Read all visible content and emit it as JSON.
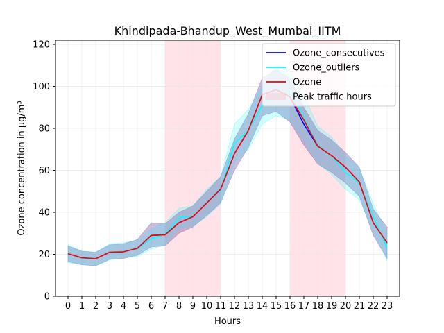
{
  "chart_data": {
    "type": "line",
    "title": "Khindipada-Bhandup_West_Mumbai_IITM",
    "xlabel": "Hours",
    "ylabel": "Ozone concentration in µg/m³",
    "x": [
      0,
      1,
      2,
      3,
      4,
      5,
      6,
      7,
      8,
      9,
      10,
      11,
      12,
      13,
      14,
      15,
      16,
      17,
      18,
      19,
      20,
      21,
      22,
      23
    ],
    "x_tick_labels": [
      "0",
      "1",
      "2",
      "3",
      "4",
      "5",
      "6",
      "7",
      "8",
      "9",
      "10",
      "11",
      "12",
      "13",
      "14",
      "15",
      "16",
      "17",
      "18",
      "19",
      "20",
      "21",
      "22",
      "23"
    ],
    "xlim": [
      -0.9,
      23.9
    ],
    "ylim": [
      0,
      122
    ],
    "y_ticks": [
      0,
      20,
      40,
      60,
      80,
      100,
      120
    ],
    "y_tick_labels": [
      "0",
      "20",
      "40",
      "60",
      "80",
      "100",
      "120"
    ],
    "grid": true,
    "legend_position": "top-right",
    "shaded_regions": [
      {
        "name": "Peak traffic hours",
        "from": 7,
        "to": 11,
        "color": "#ffc0cb"
      },
      {
        "name": "Peak traffic hours",
        "from": 16,
        "to": 20,
        "color": "#ffc0cb"
      }
    ],
    "series": [
      {
        "name": "Ozone_consecutives",
        "color": "#0000ff",
        "values": [
          20.3,
          18.3,
          17.9,
          21.0,
          21.2,
          22.8,
          29.0,
          29.3,
          35.0,
          37.9,
          44.4,
          51.0,
          68.0,
          79.0,
          96.0,
          98.5,
          95.0,
          82.0,
          71.5,
          67.0,
          61.5,
          54.5,
          35.0,
          25.5
        ],
        "band_low": [
          16.5,
          15.0,
          14.5,
          17.5,
          18.0,
          19.5,
          23.5,
          24.0,
          30.0,
          33.0,
          38.5,
          44.5,
          60.0,
          71.0,
          86.0,
          88.0,
          83.0,
          72.0,
          63.0,
          59.0,
          54.0,
          47.5,
          29.0,
          18.0
        ],
        "band_high": [
          24.0,
          21.5,
          21.0,
          24.5,
          25.0,
          27.0,
          35.0,
          34.5,
          40.0,
          43.0,
          50.0,
          57.0,
          75.0,
          87.0,
          104.0,
          108.0,
          104.0,
          90.0,
          79.0,
          74.5,
          68.5,
          61.5,
          41.5,
          33.0
        ]
      },
      {
        "name": "Ozone_outliers",
        "color": "#00ffff",
        "values": [
          20.3,
          18.2,
          17.8,
          21.2,
          21.3,
          22.5,
          27.5,
          29.5,
          37.5,
          37.9,
          44.4,
          50.5,
          73.0,
          79.0,
          91.0,
          95.5,
          98.0,
          85.0,
          72.0,
          67.0,
          59.0,
          54.0,
          38.0,
          23.0
        ],
        "band_low": [
          16.0,
          15.0,
          14.5,
          17.5,
          18.5,
          19.0,
          22.5,
          24.5,
          32.5,
          33.5,
          38.0,
          44.0,
          64.0,
          70.0,
          82.0,
          86.0,
          84.0,
          74.0,
          63.5,
          58.0,
          51.0,
          46.0,
          31.0,
          17.0
        ],
        "band_high": [
          24.5,
          21.5,
          21.0,
          25.0,
          25.5,
          26.5,
          32.0,
          35.0,
          42.0,
          43.0,
          51.0,
          57.0,
          82.0,
          89.0,
          100.0,
          110.5,
          107.5,
          96.0,
          81.0,
          76.0,
          67.0,
          61.0,
          44.0,
          30.0
        ]
      },
      {
        "name": "Ozone",
        "color": "#ff0000",
        "values": [
          20.3,
          18.3,
          17.9,
          21.0,
          21.2,
          22.8,
          29.0,
          29.3,
          35.0,
          37.9,
          44.4,
          51.0,
          68.0,
          79.0,
          96.0,
          98.5,
          95.0,
          84.0,
          71.5,
          67.0,
          61.5,
          54.5,
          35.0,
          25.5
        ]
      }
    ]
  }
}
